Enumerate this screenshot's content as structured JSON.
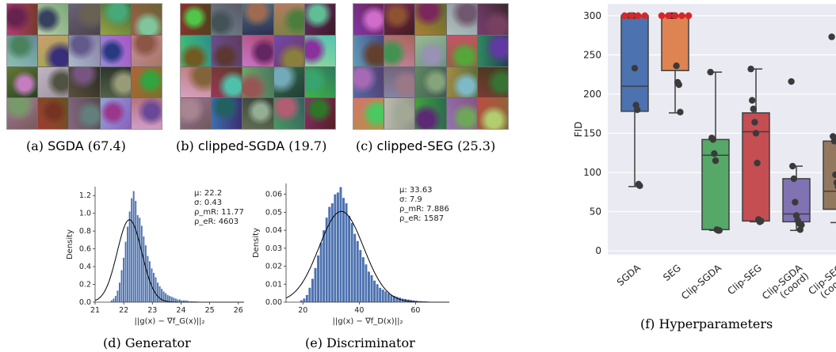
{
  "figure": {
    "panels": {
      "a": {
        "label": "(a)",
        "method": "SGDA",
        "score": "(67.4)"
      },
      "b": {
        "label": "(b)",
        "method": "clipped-SGDA",
        "score": "(19.7)"
      },
      "c": {
        "label": "(c)",
        "method": "clipped-SEG",
        "score": "(25.3)"
      },
      "d": {
        "caption": "(d) Generator"
      },
      "e": {
        "caption": "(e) Discriminator"
      },
      "f": {
        "caption": "(f) Hyperparameters"
      }
    }
  },
  "chart_data": [
    {
      "id": "d",
      "type": "bar",
      "xlabel": "||g(x) − ∇f_G(x)||₂",
      "ylabel": "Density",
      "xlim": [
        21,
        26.2
      ],
      "ylim": [
        0,
        1.3
      ],
      "xticks": [
        21,
        22,
        23,
        24,
        25,
        26
      ],
      "yticks": [
        0.0,
        0.2,
        0.4,
        0.6,
        0.8,
        1.0,
        1.2
      ],
      "stats": [
        "μ: 22.2",
        "σ: 0.43",
        "ρ_mR: 11.77",
        "ρ_eR: 4603"
      ],
      "bin_start": 21.55,
      "bin_width": 0.07,
      "values": [
        0.02,
        0.04,
        0.07,
        0.13,
        0.22,
        0.36,
        0.5,
        0.68,
        0.85,
        1.02,
        1.17,
        1.25,
        1.14,
        0.98,
        0.95,
        0.86,
        0.74,
        0.64,
        0.52,
        0.46,
        0.38,
        0.33,
        0.28,
        0.22,
        0.18,
        0.15,
        0.12,
        0.1,
        0.08,
        0.07,
        0.06,
        0.05,
        0.04,
        0.03,
        0.03,
        0.02,
        0.02,
        0.02,
        0.015,
        0.01,
        0.01,
        0.01,
        0.008,
        0.006,
        0.005,
        0.004,
        0.003,
        0.003,
        0.002,
        0.002
      ],
      "normal_fit": {
        "mean": 22.2,
        "sd": 0.43
      }
    },
    {
      "id": "e",
      "type": "bar",
      "xlabel": "||g(x) − ∇f_D(x)||₂",
      "ylabel": "Density",
      "xlim": [
        14,
        72
      ],
      "ylim": [
        0,
        0.066
      ],
      "xticks": [
        20,
        40,
        60
      ],
      "yticks": [
        0.0,
        0.01,
        0.02,
        0.03,
        0.04,
        0.05,
        0.06
      ],
      "stats": [
        "μ: 33.63",
        "σ: 7.9",
        "ρ_mR: 7.886",
        "ρ_eR: 1587"
      ],
      "bin_start": 19,
      "bin_width": 1,
      "values": [
        0.001,
        0.002,
        0.004,
        0.008,
        0.013,
        0.019,
        0.026,
        0.033,
        0.04,
        0.047,
        0.053,
        0.055,
        0.06,
        0.061,
        0.064,
        0.058,
        0.055,
        0.048,
        0.044,
        0.038,
        0.034,
        0.029,
        0.025,
        0.021,
        0.017,
        0.015,
        0.012,
        0.01,
        0.008,
        0.007,
        0.006,
        0.005,
        0.004,
        0.0035,
        0.003,
        0.0025,
        0.002,
        0.0018,
        0.0015,
        0.0012,
        0.001,
        0.0008,
        0.0006,
        0.0005,
        0.0004,
        0.0003,
        0.0002
      ],
      "normal_fit": {
        "mean": 33.63,
        "sd": 7.9
      }
    },
    {
      "id": "f",
      "type": "box",
      "ylabel": "FID",
      "ylim": [
        -5,
        315
      ],
      "yticks": [
        0,
        50,
        100,
        150,
        200,
        250,
        300
      ],
      "grid": true,
      "categories": [
        "SGDA",
        "SEG",
        "Clip-SGDA",
        "Clip-SEG",
        "Clip-SGDA (coord)",
        "Clip-SEG (coord)"
      ],
      "colors": [
        "#4C72B0",
        "#DD8452",
        "#55A868",
        "#C44E52",
        "#8172B3",
        "#937860"
      ],
      "boxes": [
        {
          "whislo": 82,
          "q1": 178,
          "med": 210,
          "q3": 300,
          "whishi": 300
        },
        {
          "whislo": 176,
          "q1": 230,
          "med": 300,
          "q3": 300,
          "whishi": 300
        },
        {
          "whislo": 26,
          "q1": 27,
          "med": 122,
          "q3": 142,
          "whishi": 228
        },
        {
          "whislo": 37,
          "q1": 38,
          "med": 152,
          "q3": 176,
          "whishi": 232
        },
        {
          "whislo": 26,
          "q1": 37,
          "med": 47,
          "q3": 92,
          "whishi": 108
        },
        {
          "whislo": 36,
          "q1": 53,
          "med": 76,
          "q3": 140,
          "whishi": 146
        }
      ],
      "points": [
        [
          300,
          300,
          300,
          300,
          233,
          186,
          180,
          85,
          83
        ],
        [
          300,
          300,
          300,
          300,
          300,
          236,
          215,
          212,
          177
        ],
        [
          228,
          144,
          142,
          124,
          115,
          27,
          26,
          26
        ],
        [
          232,
          192,
          181,
          164,
          150,
          112,
          40,
          37,
          38
        ],
        [
          216,
          108,
          92,
          62,
          45,
          39,
          35,
          27,
          33
        ],
        [
          273,
          146,
          140,
          97,
          87,
          82,
          60,
          47,
          38
        ]
      ],
      "cap_points": [
        [
          300,
          300,
          300,
          300
        ],
        [
          300,
          300,
          300,
          300,
          300
        ]
      ],
      "cap_color": "#d62728"
    }
  ]
}
